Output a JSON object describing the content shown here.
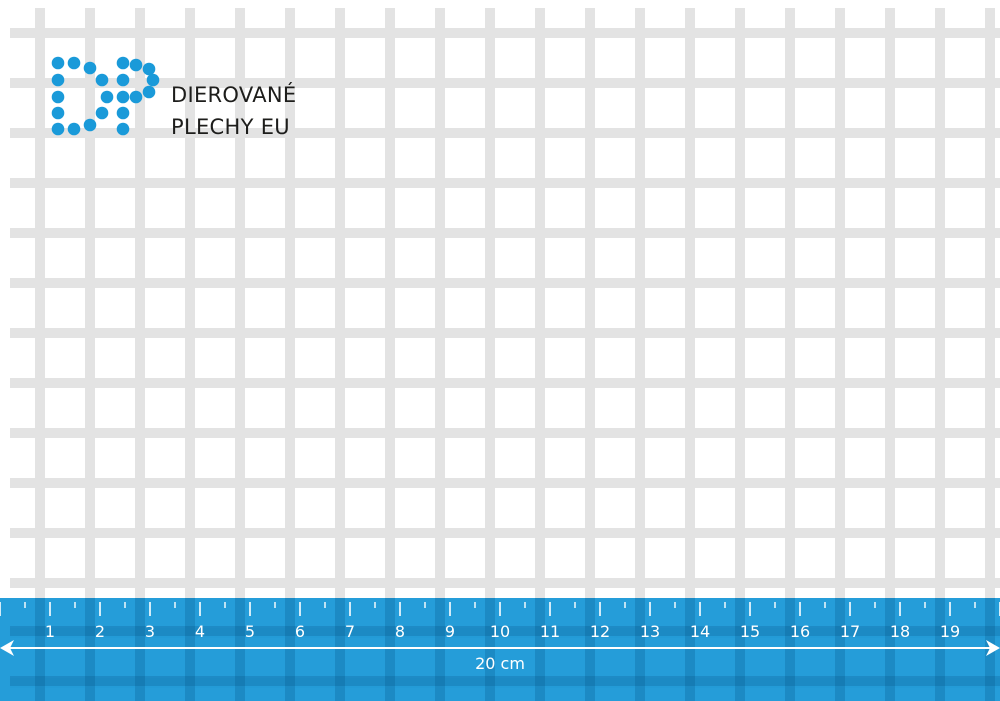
{
  "brand": {
    "logo_mark": "DP",
    "line1": "DIEROVANÉ",
    "line2": "PLECHY EU",
    "color": "#1a9ad9"
  },
  "sheet": {
    "metal_color": "#e3e3e3",
    "hole_shape": "square"
  },
  "ruler": {
    "color": "#1496d6",
    "labels": [
      "1",
      "2",
      "3",
      "4",
      "5",
      "6",
      "7",
      "8",
      "9",
      "10",
      "11",
      "12",
      "13",
      "14",
      "15",
      "16",
      "17",
      "18",
      "19"
    ],
    "length_label": "20 cm"
  }
}
